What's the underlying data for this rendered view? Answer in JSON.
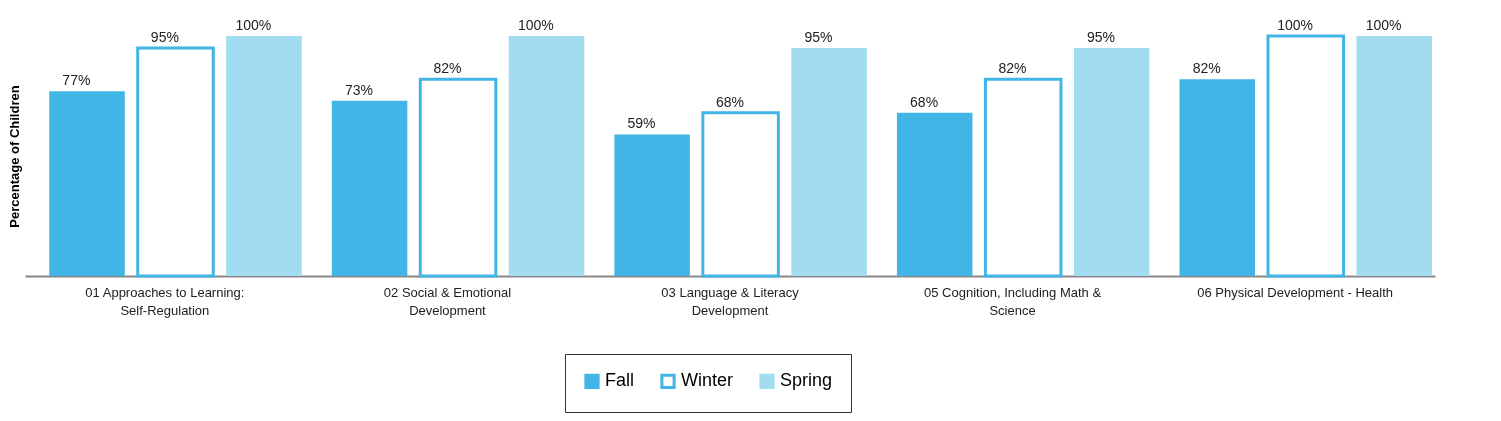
{
  "chart_data": {
    "type": "bar",
    "ylabel": "Percentage of Children",
    "categories": [
      "01 Approaches to Learning: Self-Regulation",
      "02 Social & Emotional Development",
      "03 Language & Literacy Development",
      "05 Cognition, Including Math & Science",
      "06 Physical Development - Health"
    ],
    "series": [
      {
        "name": "Fall",
        "color": "#41b6e6",
        "values": [
          77,
          73,
          59,
          68,
          82
        ],
        "value_labels": [
          "77%",
          "73%",
          "59%",
          "68%",
          "82%"
        ]
      },
      {
        "name": "Winter",
        "color": "#ffffff",
        "values": [
          95,
          82,
          68,
          82,
          100
        ],
        "value_labels": [
          "95%",
          "82%",
          "68%",
          "82%",
          "100%"
        ]
      },
      {
        "name": "Spring",
        "color": "#a1dcf0",
        "values": [
          100,
          100,
          95,
          95,
          100
        ],
        "value_labels": [
          "100%",
          "100%",
          "95%",
          "95%",
          "100%"
        ]
      }
    ],
    "ylim": [
      0,
      100
    ],
    "tick_labels": "x",
    "grid": false,
    "legend": "bottom"
  }
}
